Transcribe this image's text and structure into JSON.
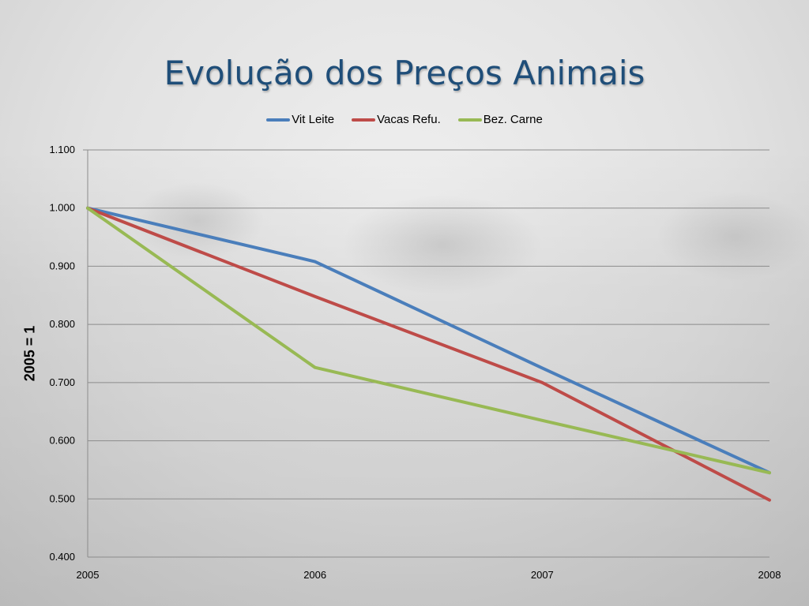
{
  "slide": {
    "title": "Evolução dos Preços Animais"
  },
  "chart_data": {
    "type": "line",
    "x": [
      "2005",
      "2006",
      "2007",
      "2008"
    ],
    "ylabel": "2005 = 1",
    "ylim": [
      0.4,
      1.1
    ],
    "yticks": [
      "0.400",
      "0.500",
      "0.600",
      "0.700",
      "0.800",
      "0.900",
      "1.000",
      "1.100"
    ],
    "grid": true,
    "legend_position": "top",
    "series": [
      {
        "name": "Vit Leite",
        "color": "#4a7ebb",
        "values": [
          1.0,
          0.908,
          0.725,
          0.545
        ]
      },
      {
        "name": "Vacas Refu.",
        "color": "#be4b48",
        "values": [
          1.0,
          0.848,
          0.7,
          0.498
        ]
      },
      {
        "name": "Bez. Carne",
        "color": "#98b954",
        "values": [
          1.0,
          0.726,
          0.635,
          0.545
        ]
      }
    ]
  }
}
